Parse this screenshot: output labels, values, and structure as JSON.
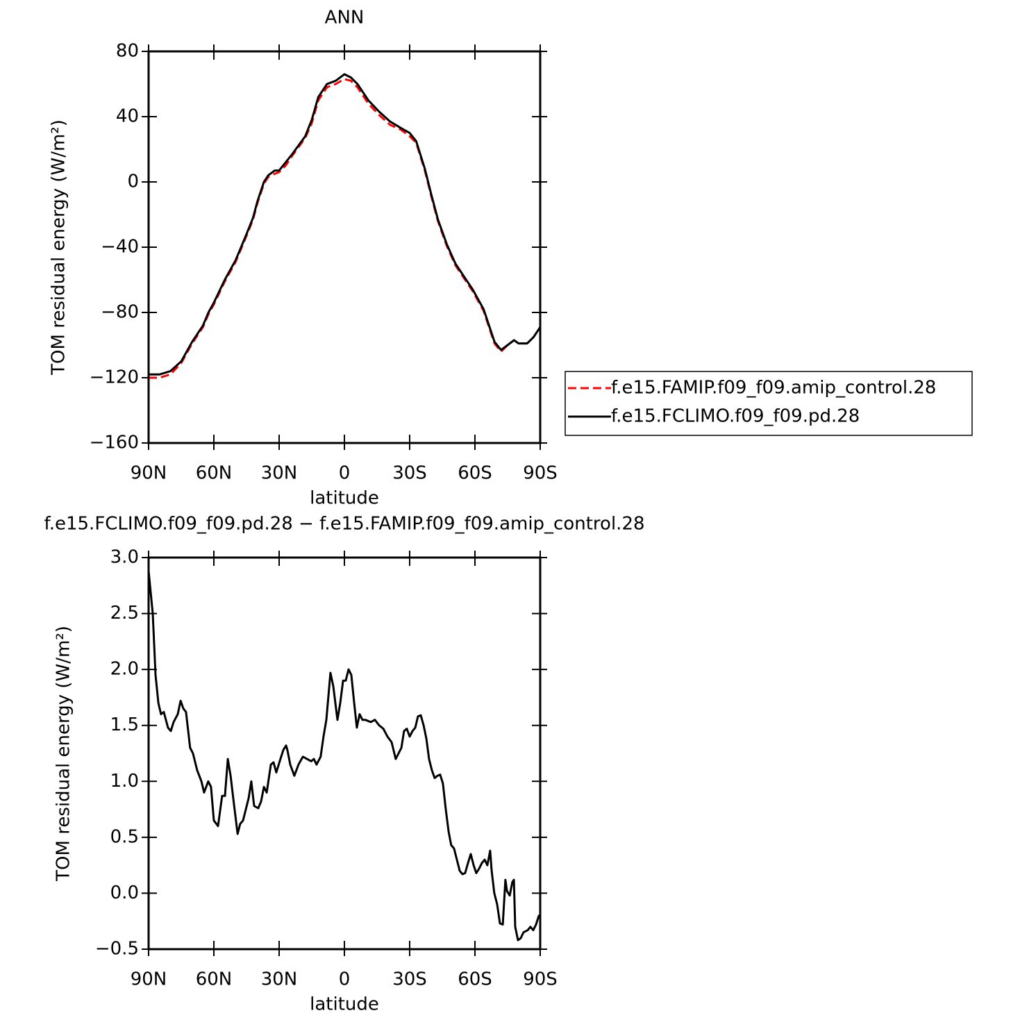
{
  "chart_data": [
    {
      "type": "line",
      "title": "ANN",
      "xlabel": "latitude",
      "ylabel": "TOM residual energy (W/m²)",
      "x": [
        90,
        85,
        80,
        75,
        70,
        65,
        62.5,
        60,
        55,
        50,
        47.5,
        45,
        42,
        40,
        37,
        35,
        32,
        30,
        27,
        24,
        18,
        15,
        12,
        8,
        4,
        0,
        -3,
        -6,
        -11,
        -16,
        -21,
        -26,
        -30,
        -33,
        -37,
        -40,
        -43,
        -47,
        -51,
        -55,
        -59,
        -64,
        -67,
        -69,
        -72,
        -75,
        -78,
        -80,
        -84,
        -87,
        -90
      ],
      "series": [
        {
          "name": "f.e15.FAMIP.f09_f09.amip_control.28",
          "color": "#ff0000",
          "line_style": "dashed",
          "values": [
            -120,
            -120,
            -118,
            -111,
            -99,
            -89,
            -81,
            -75,
            -61,
            -49,
            -41,
            -33,
            -23,
            -13,
            -1,
            3,
            5,
            6,
            10,
            16,
            27,
            36,
            50,
            58,
            60,
            63,
            62,
            58,
            48,
            41,
            35,
            32,
            28,
            24,
            7,
            -9,
            -24,
            -39,
            -51,
            -59,
            -67,
            -79,
            -91,
            -99,
            -104,
            -100,
            -97,
            -99,
            -99,
            -95,
            -89
          ]
        },
        {
          "name": "f.e15.FCLIMO.f09_f09.pd.28",
          "color": "#000000",
          "line_style": "solid",
          "values": [
            -118,
            -118,
            -116,
            -110,
            -98,
            -88,
            -80,
            -74,
            -60,
            -48,
            -40,
            -32,
            -22,
            -12,
            0,
            4,
            7,
            7,
            12,
            17,
            28,
            38,
            52,
            60,
            62,
            66,
            64,
            60,
            50,
            43,
            37,
            33,
            30,
            25,
            8,
            -8,
            -23,
            -38,
            -50,
            -58,
            -66,
            -78,
            -90,
            -98,
            -103,
            -100,
            -97,
            -99,
            -99,
            -95,
            -89
          ]
        }
      ],
      "xlim": [
        90,
        -90
      ],
      "xticks": [
        {
          "value": 90,
          "label": "90N"
        },
        {
          "value": 60,
          "label": "60N"
        },
        {
          "value": 30,
          "label": "30N"
        },
        0,
        {
          "value": -30,
          "label": "30S"
        },
        {
          "value": -60,
          "label": "60S"
        },
        {
          "value": -90,
          "label": "90S"
        }
      ],
      "ylim": [
        -160,
        80
      ],
      "yticks": [
        80,
        40,
        0,
        {
          "value": -40,
          "label": "−40"
        },
        {
          "value": -80,
          "label": "−80"
        },
        {
          "value": -120,
          "label": "−120"
        },
        {
          "value": -160,
          "label": "−160"
        }
      ],
      "legend": "right"
    },
    {
      "type": "line",
      "title": "f.e15.FCLIMO.f09_f09.pd.28 − f.e15.FAMIP.f09_f09.amip_control.28",
      "xlabel": "latitude",
      "ylabel": "TOM residual energy (W/m²)",
      "x": [
        90,
        88.1,
        86.8,
        85.5,
        84.3,
        83.0,
        81.1,
        79.8,
        78.5,
        76.6,
        75.3,
        74.0,
        72.8,
        70.9,
        69.6,
        67.7,
        65.7,
        64.5,
        62.6,
        61.3,
        60.0,
        58.1,
        56.2,
        54.9,
        53.6,
        52.3,
        51.1,
        49.1,
        47.9,
        46.6,
        44.0,
        42.8,
        41.5,
        39.6,
        38.3,
        37.0,
        35.7,
        33.8,
        32.6,
        31.3,
        29.4,
        28.1,
        26.8,
        26.2,
        24.9,
        23.0,
        21.1,
        19.1,
        17.2,
        15.3,
        14.0,
        12.8,
        10.9,
        9.6,
        8.3,
        6.4,
        5.1,
        3.2,
        1.9,
        0.6,
        -0.6,
        -1.9,
        -3.2,
        -4.5,
        -5.7,
        -7.0,
        -8.3,
        -9.6,
        -12.1,
        -14.0,
        -16.0,
        -17.9,
        -19.8,
        -21.7,
        -23.6,
        -24.9,
        -26.2,
        -27.4,
        -28.7,
        -30.0,
        -31.3,
        -32.6,
        -33.8,
        -35.1,
        -36.4,
        -37.7,
        -38.9,
        -40.2,
        -41.5,
        -42.8,
        -44.0,
        -45.3,
        -46.6,
        -47.9,
        -49.1,
        -50.4,
        -51.7,
        -53.0,
        -54.3,
        -55.5,
        -56.8,
        -58.1,
        -59.4,
        -60.6,
        -61.9,
        -63.2,
        -64.5,
        -65.7,
        -67.0,
        -67.7,
        -68.9,
        -70.2,
        -71.5,
        -72.8,
        -74.0,
        -74.7,
        -76.0,
        -77.2,
        -77.9,
        -78.5,
        -79.8,
        -81.1,
        -82.3,
        -84.3,
        -85.5,
        -86.8,
        -88.1,
        -89.4,
        -90
      ],
      "series": [
        {
          "color": "#000000",
          "line_style": "solid",
          "values": [
            2.88,
            2.5,
            1.95,
            1.7,
            1.6,
            1.62,
            1.48,
            1.45,
            1.53,
            1.6,
            1.72,
            1.65,
            1.62,
            1.3,
            1.25,
            1.1,
            1.0,
            0.9,
            1.0,
            0.95,
            0.65,
            0.6,
            0.87,
            0.87,
            1.2,
            1.05,
            0.85,
            0.53,
            0.62,
            0.65,
            0.85,
            1.0,
            0.78,
            0.76,
            0.82,
            0.95,
            0.9,
            1.15,
            1.17,
            1.08,
            1.2,
            1.28,
            1.32,
            1.28,
            1.15,
            1.05,
            1.15,
            1.22,
            1.2,
            1.18,
            1.2,
            1.15,
            1.22,
            1.4,
            1.55,
            1.97,
            1.85,
            1.55,
            1.7,
            1.9,
            1.9,
            2.0,
            1.95,
            1.7,
            1.48,
            1.6,
            1.55,
            1.55,
            1.53,
            1.55,
            1.5,
            1.47,
            1.4,
            1.35,
            1.2,
            1.25,
            1.3,
            1.45,
            1.47,
            1.4,
            1.45,
            1.48,
            1.58,
            1.59,
            1.5,
            1.38,
            1.2,
            1.1,
            1.03,
            1.05,
            1.06,
            0.98,
            0.75,
            0.55,
            0.43,
            0.4,
            0.3,
            0.2,
            0.17,
            0.18,
            0.27,
            0.35,
            0.25,
            0.18,
            0.22,
            0.27,
            0.3,
            0.25,
            0.38,
            0.2,
            0.0,
            -0.1,
            -0.27,
            -0.28,
            0.12,
            0.02,
            -0.02,
            0.1,
            0.12,
            -0.3,
            -0.42,
            -0.4,
            -0.35,
            -0.33,
            -0.3,
            -0.33,
            -0.28,
            -0.2,
            -0.2
          ]
        }
      ],
      "xlim": [
        90,
        -90
      ],
      "xticks": [
        {
          "value": 90,
          "label": "90N"
        },
        {
          "value": 60,
          "label": "60N"
        },
        {
          "value": 30,
          "label": "30N"
        },
        0,
        {
          "value": -30,
          "label": "30S"
        },
        {
          "value": -60,
          "label": "60S"
        },
        {
          "value": -90,
          "label": "90S"
        }
      ],
      "ylim": [
        -0.5,
        3
      ],
      "yticks": [
        {
          "value": 3,
          "label": "3.0"
        },
        2.5,
        {
          "value": 2,
          "label": "2.0"
        },
        1.5,
        {
          "value": 1,
          "label": "1.0"
        },
        0.5,
        {
          "value": 0,
          "label": "0.0"
        },
        {
          "value": -0.5,
          "label": "−0.5"
        }
      ]
    }
  ]
}
